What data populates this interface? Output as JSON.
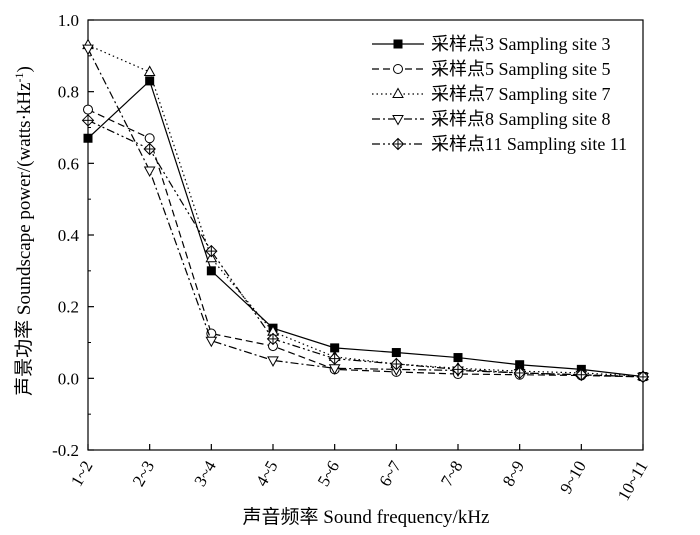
{
  "chart_data": {
    "type": "line",
    "xlabel": "声音频率 Sound frequency/kHz",
    "ylabel": "声景功率 Soundscape power/(watts·kHz",
    "ylabel_sup": "-1",
    "ylabel_close": ")",
    "categories": [
      "1~2",
      "2~3",
      "3~4",
      "4~5",
      "5~6",
      "6~7",
      "7~8",
      "8~9",
      "9~10",
      "10~11"
    ],
    "ylim": [
      -0.2,
      1.0
    ],
    "yticks": [
      -0.2,
      0.0,
      0.2,
      0.4,
      0.6,
      0.8,
      1.0
    ],
    "ytick_labels": [
      "-0.2",
      "0.0",
      "0.2",
      "0.4",
      "0.6",
      "0.8",
      "1.0"
    ],
    "legend_position": "top-right",
    "grid": false,
    "series": [
      {
        "name": "采样点3 Sampling site 3",
        "marker": "square-filled",
        "dash": "solid",
        "values": [
          0.67,
          0.83,
          0.3,
          0.14,
          0.085,
          0.072,
          0.058,
          0.038,
          0.025,
          0.005
        ]
      },
      {
        "name": "采样点5 Sampling site 5",
        "marker": "circle-open",
        "dash": "dashed",
        "values": [
          0.75,
          0.67,
          0.125,
          0.09,
          0.025,
          0.018,
          0.012,
          0.01,
          0.008,
          0.004
        ]
      },
      {
        "name": "采样点7 Sampling site 7",
        "marker": "triangle-up-open",
        "dash": "dotted",
        "values": [
          0.93,
          0.855,
          0.335,
          0.13,
          0.06,
          0.04,
          0.028,
          0.02,
          0.015,
          0.006
        ]
      },
      {
        "name": "采样点8 Sampling site 8",
        "marker": "triangle-down-open",
        "dash": "dashdot",
        "values": [
          0.92,
          0.58,
          0.105,
          0.05,
          0.028,
          0.025,
          0.022,
          0.015,
          0.01,
          0.004
        ]
      },
      {
        "name": "采样点11 Sampling site 11",
        "marker": "diamond-cross-open",
        "dash": "dashdotdot",
        "values": [
          0.72,
          0.64,
          0.355,
          0.11,
          0.055,
          0.04,
          0.025,
          0.015,
          0.01,
          0.004
        ]
      }
    ]
  }
}
